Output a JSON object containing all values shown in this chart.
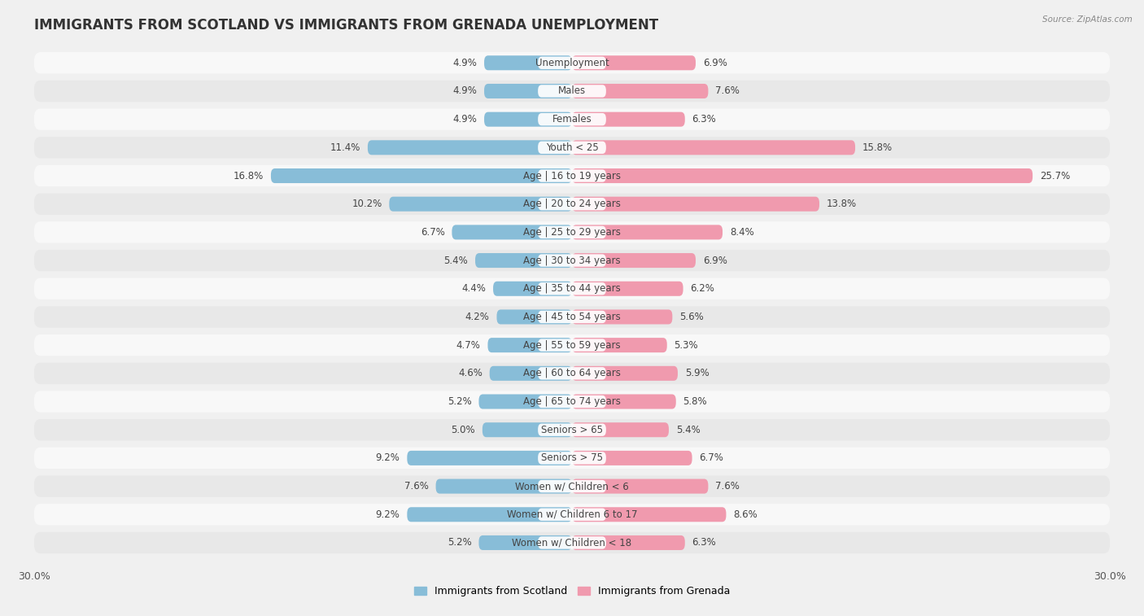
{
  "title": "IMMIGRANTS FROM SCOTLAND VS IMMIGRANTS FROM GRENADA UNEMPLOYMENT",
  "source": "Source: ZipAtlas.com",
  "categories": [
    "Unemployment",
    "Males",
    "Females",
    "Youth < 25",
    "Age | 16 to 19 years",
    "Age | 20 to 24 years",
    "Age | 25 to 29 years",
    "Age | 30 to 34 years",
    "Age | 35 to 44 years",
    "Age | 45 to 54 years",
    "Age | 55 to 59 years",
    "Age | 60 to 64 years",
    "Age | 65 to 74 years",
    "Seniors > 65",
    "Seniors > 75",
    "Women w/ Children < 6",
    "Women w/ Children 6 to 17",
    "Women w/ Children < 18"
  ],
  "scotland_values": [
    4.9,
    4.9,
    4.9,
    11.4,
    16.8,
    10.2,
    6.7,
    5.4,
    4.4,
    4.2,
    4.7,
    4.6,
    5.2,
    5.0,
    9.2,
    7.6,
    9.2,
    5.2
  ],
  "grenada_values": [
    6.9,
    7.6,
    6.3,
    15.8,
    25.7,
    13.8,
    8.4,
    6.9,
    6.2,
    5.6,
    5.3,
    5.9,
    5.8,
    5.4,
    6.7,
    7.6,
    8.6,
    6.3
  ],
  "scotland_color": "#88bdd8",
  "grenada_color": "#f09aae",
  "axis_limit": 30.0,
  "background_color": "#f0f0f0",
  "row_color_odd": "#e8e8e8",
  "row_color_even": "#f8f8f8",
  "title_fontsize": 12,
  "label_fontsize": 8.5,
  "value_fontsize": 8.5,
  "legend_label_scotland": "Immigrants from Scotland",
  "legend_label_grenada": "Immigrants from Grenada"
}
